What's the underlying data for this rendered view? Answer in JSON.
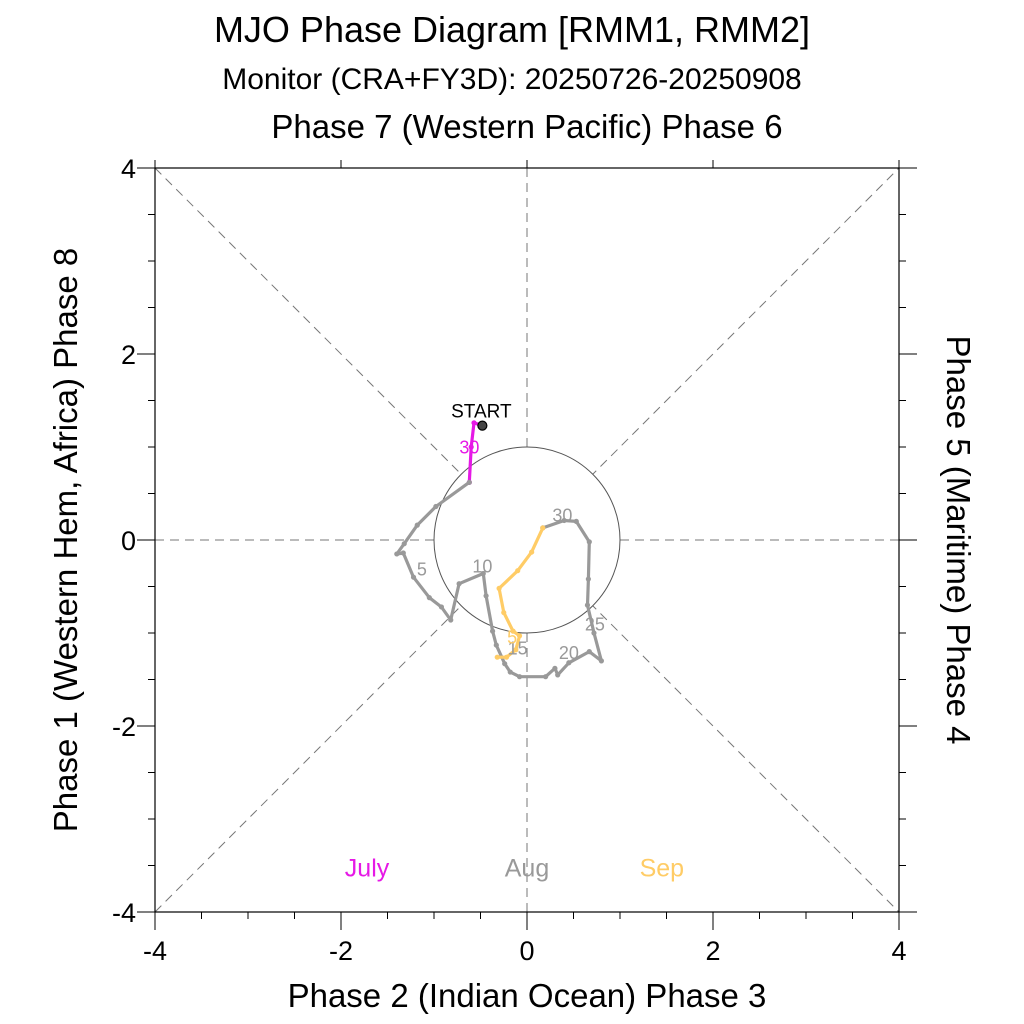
{
  "chart_data": {
    "type": "line",
    "title": "MJO Phase Diagram [RMM1, RMM2]",
    "subtitle": "Monitor (CRA+FY3D): 20250726-20250908",
    "top_label": "Phase 7 (Western Pacific) Phase 6",
    "xlabel": "Phase 2 (Indian Ocean) Phase 3",
    "ylabel": "Phase 1 (Western Hem, Africa) Phase 8",
    "right_label": "Phase 5 (Maritime) Phase 4",
    "xlim": [
      -4,
      4
    ],
    "ylim": [
      -4,
      4
    ],
    "x_ticks": [
      "-4",
      "-2",
      "0",
      "2",
      "4"
    ],
    "y_ticks": [
      "-4",
      "-2",
      "0",
      "2",
      "4"
    ],
    "unit_circle_radius": 1,
    "start_label": "START",
    "start_point": [
      -0.48,
      1.23
    ],
    "series": [
      {
        "name": "July",
        "color": "#e619e6",
        "points": [
          [
            -0.48,
            1.23
          ],
          [
            -0.57,
            1.26
          ],
          [
            -0.6,
            1.0
          ],
          [
            -0.62,
            0.62
          ]
        ],
        "day_labels": [
          {
            "text": "30",
            "x": -0.62,
            "y": 0.98
          }
        ]
      },
      {
        "name": "Aug",
        "color": "#999999",
        "points": [
          [
            -0.62,
            0.62
          ],
          [
            -0.98,
            0.36
          ],
          [
            -1.18,
            0.16
          ],
          [
            -1.32,
            -0.04
          ],
          [
            -1.4,
            -0.15
          ],
          [
            -1.33,
            -0.14
          ],
          [
            -1.22,
            -0.4
          ],
          [
            -1.05,
            -0.62
          ],
          [
            -0.92,
            -0.72
          ],
          [
            -0.82,
            -0.86
          ],
          [
            -0.73,
            -0.47
          ],
          [
            -0.47,
            -0.36
          ],
          [
            -0.44,
            -0.6
          ],
          [
            -0.37,
            -0.98
          ],
          [
            -0.33,
            -1.13
          ],
          [
            -0.24,
            -1.33
          ],
          [
            -0.18,
            -1.42
          ],
          [
            -0.08,
            -1.47
          ],
          [
            0.2,
            -1.47
          ],
          [
            0.3,
            -1.38
          ],
          [
            0.33,
            -1.45
          ],
          [
            0.45,
            -1.32
          ],
          [
            0.67,
            -1.2
          ],
          [
            0.8,
            -1.3
          ],
          [
            0.72,
            -1.0
          ],
          [
            0.65,
            -0.7
          ],
          [
            0.66,
            -0.42
          ],
          [
            0.67,
            -0.02
          ],
          [
            0.53,
            0.2
          ],
          [
            0.4,
            0.21
          ],
          [
            0.17,
            0.13
          ]
        ],
        "day_labels": [
          {
            "text": "5",
            "x": -1.13,
            "y": -0.33
          },
          {
            "text": "10",
            "x": -0.48,
            "y": -0.3
          },
          {
            "text": "15",
            "x": -0.1,
            "y": -1.18
          },
          {
            "text": "20",
            "x": 0.45,
            "y": -1.23
          },
          {
            "text": "25",
            "x": 0.73,
            "y": -0.92
          },
          {
            "text": "30",
            "x": 0.38,
            "y": 0.25
          }
        ]
      },
      {
        "name": "Sep",
        "color": "#ffcc66",
        "points": [
          [
            0.17,
            0.13
          ],
          [
            0.05,
            -0.13
          ],
          [
            -0.1,
            -0.33
          ],
          [
            -0.3,
            -0.52
          ],
          [
            -0.25,
            -0.78
          ],
          [
            -0.15,
            -0.98
          ],
          [
            -0.08,
            -1.03
          ],
          [
            -0.12,
            -1.18
          ],
          [
            -0.22,
            -1.26
          ],
          [
            -0.32,
            -1.26
          ]
        ],
        "day_labels": [
          {
            "text": "5",
            "x": -0.16,
            "y": -1.06
          }
        ]
      }
    ]
  }
}
